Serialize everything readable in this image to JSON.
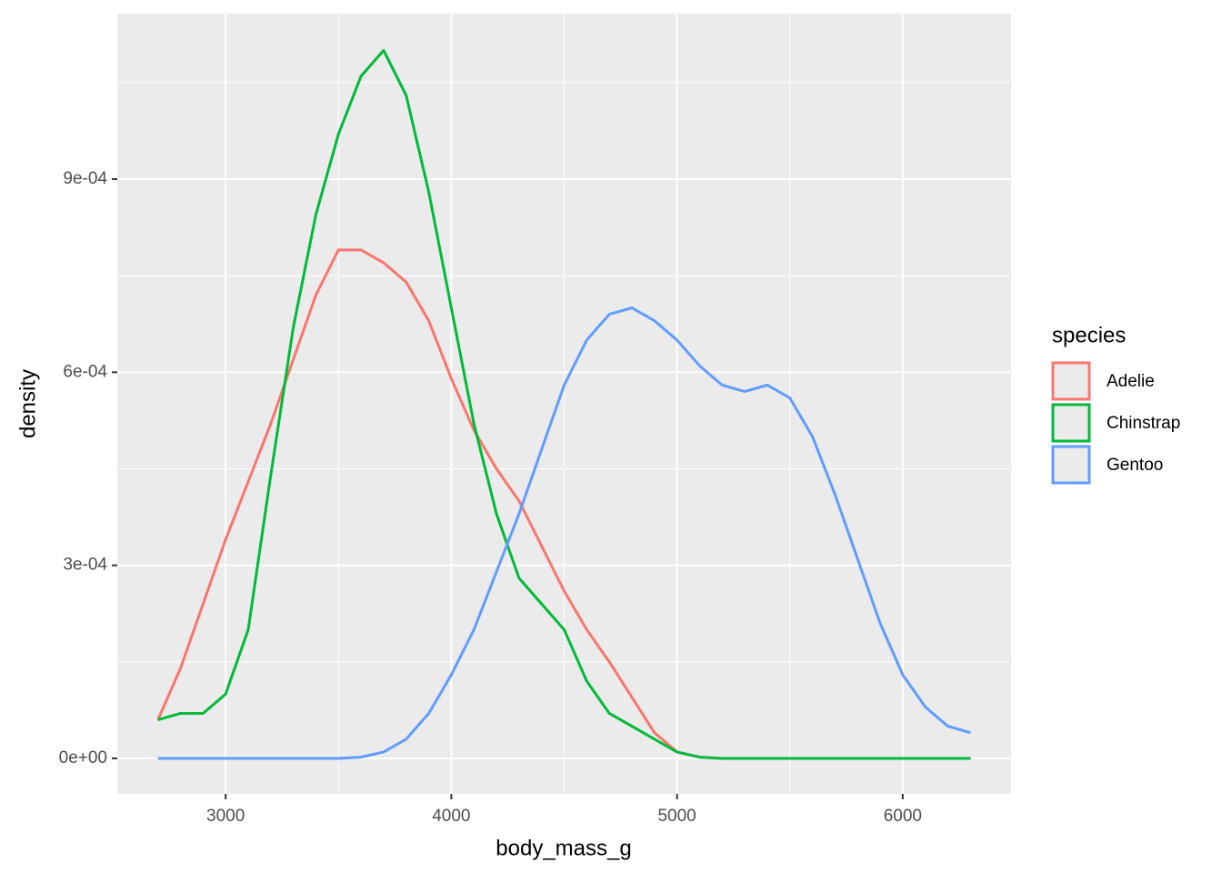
{
  "chart_data": {
    "type": "line",
    "x_label": "body_mass_g",
    "y_label": "density",
    "x": [
      2700,
      2800,
      2900,
      3000,
      3100,
      3200,
      3300,
      3400,
      3500,
      3600,
      3700,
      3800,
      3900,
      4000,
      4100,
      4200,
      4300,
      4400,
      4500,
      4600,
      4700,
      4800,
      4900,
      5000,
      5100,
      5200,
      5300,
      5400,
      5500,
      5600,
      5700,
      5800,
      5900,
      6000,
      6100,
      6200,
      6300
    ],
    "series": [
      {
        "name": "Adelie",
        "color": "#F8766D",
        "values": [
          6e-05,
          0.00014,
          0.00024,
          0.00034,
          0.00043,
          0.00052,
          0.00062,
          0.00072,
          0.00079,
          0.00079,
          0.00077,
          0.00074,
          0.00068,
          0.00059,
          0.00051,
          0.00045,
          0.0004,
          0.00033,
          0.00026,
          0.0002,
          0.00015,
          9.5e-05,
          4e-05,
          1e-05,
          2e-06,
          0,
          0,
          0,
          0,
          0,
          0,
          0,
          0,
          0,
          0,
          0,
          0
        ]
      },
      {
        "name": "Chinstrap",
        "color": "#00BA38",
        "values": [
          6e-05,
          7e-05,
          7e-05,
          0.0001,
          0.0002,
          0.00044,
          0.00067,
          0.000845,
          0.00097,
          0.00106,
          0.0011,
          0.00103,
          0.00088,
          0.0007,
          0.00052,
          0.00038,
          0.00028,
          0.00024,
          0.0002,
          0.00012,
          7e-05,
          5e-05,
          3e-05,
          1e-05,
          2e-06,
          0,
          0,
          0,
          0,
          0,
          0,
          0,
          0,
          0,
          0,
          0,
          0
        ]
      },
      {
        "name": "Gentoo",
        "color": "#619CFF",
        "values": [
          0,
          0,
          0,
          0,
          0,
          0,
          0,
          0,
          0,
          2e-06,
          1e-05,
          3e-05,
          7e-05,
          0.00013,
          0.0002,
          0.00029,
          0.00038,
          0.00048,
          0.00058,
          0.00065,
          0.00069,
          0.0007,
          0.00068,
          0.00065,
          0.00061,
          0.00058,
          0.00057,
          0.00058,
          0.00056,
          0.0005,
          0.00041,
          0.00031,
          0.00021,
          0.00013,
          8e-05,
          5e-05,
          4e-05
        ]
      }
    ],
    "xlim": [
      2520,
      6480
    ],
    "ylim": [
      -5.51e-05,
      0.0011571
    ],
    "xticks": [
      3000,
      4000,
      5000,
      6000
    ],
    "yticks": [
      {
        "value": 0,
        "label": "0e+00"
      },
      {
        "value": 0.0003,
        "label": "3e-04"
      },
      {
        "value": 0.0006,
        "label": "6e-04"
      },
      {
        "value": 0.0009,
        "label": "9e-04"
      }
    ],
    "x_minor_grid": [
      3500,
      4500,
      5500
    ],
    "y_minor_grid": [
      0.00015,
      0.00045,
      0.00075,
      0.00105
    ],
    "grid": true,
    "legend_title": "species",
    "legend_position": "right"
  }
}
